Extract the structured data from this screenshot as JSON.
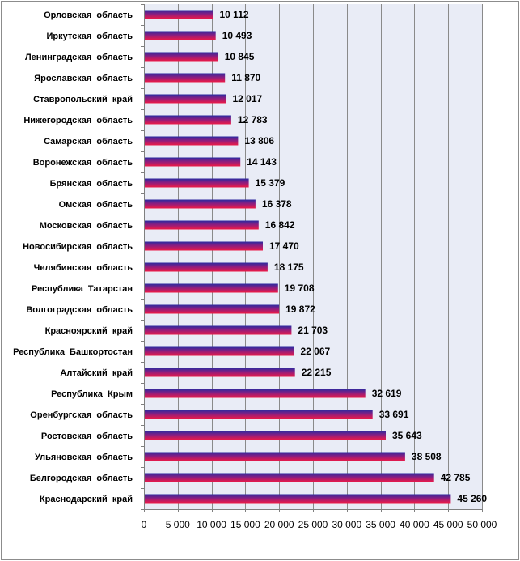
{
  "chart_data": {
    "type": "bar",
    "orientation": "horizontal",
    "title": "",
    "xlabel": "",
    "ylabel": "",
    "categories": [
      "Орловская  область",
      "Иркутская  область",
      "Ленинградская  область",
      "Ярославская  область",
      "Ставропольский  край",
      "Нижегородская  область",
      "Самарская  область",
      "Воронежская  область",
      "Брянская  область",
      "Омская  область",
      "Московская  область",
      "Новосибирская  область",
      "Челябинская  область",
      "Республика  Татарстан",
      "Волгоградская  область",
      "Красноярский  край",
      "Республика  Башкортостан",
      "Алтайский  край",
      "Республика  Крым",
      "Оренбургская  область",
      "Ростовская  область",
      "Ульяновская  область",
      "Белгородская  область",
      "Краснодарский  край"
    ],
    "values": [
      10112,
      10493,
      10845,
      11870,
      12017,
      12783,
      13806,
      14143,
      15379,
      16378,
      16842,
      17470,
      18175,
      19708,
      19872,
      21703,
      22067,
      22215,
      32619,
      33691,
      35643,
      38508,
      42785,
      45260
    ],
    "value_labels": [
      "10 112",
      "10 493",
      "10 845",
      "11 870",
      "12 017",
      "12 783",
      "13 806",
      "14 143",
      "15 379",
      "16 378",
      "16 842",
      "17 470",
      "18 175",
      "19 708",
      "19 872",
      "21 703",
      "22 067",
      "22 215",
      "32 619",
      "33 691",
      "35 643",
      "38 508",
      "42 785",
      "45 260"
    ],
    "xlim": [
      0,
      50000
    ],
    "x_ticks": [
      0,
      5000,
      10000,
      15000,
      20000,
      25000,
      30000,
      35000,
      40000,
      45000,
      50000
    ],
    "x_tick_labels": [
      "0",
      "5 000",
      "10 000",
      "15 000",
      "20 000",
      "25 000",
      "30 000",
      "35 000",
      "40 000",
      "45 000",
      "50 000"
    ],
    "grid": "vertical",
    "legend": "none",
    "colors": {
      "bar_top": "#2a2aa0",
      "bar_bottom": "#ee1a46",
      "plot_background": "#e9ecf6",
      "gridline": "#8a8a8a"
    }
  }
}
